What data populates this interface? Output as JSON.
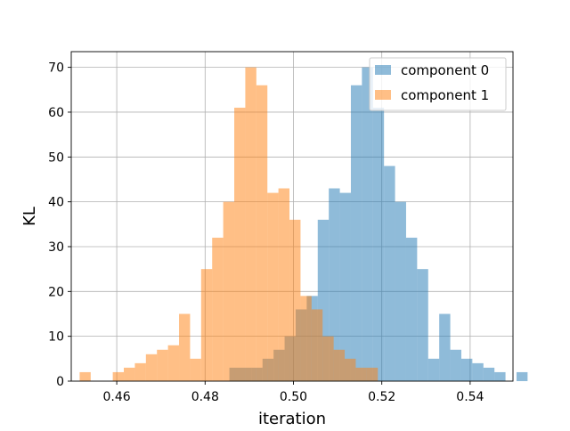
{
  "chart_data": {
    "type": "bar",
    "title": "",
    "xlabel": "iteration",
    "ylabel": "KL",
    "xlim": [
      0.4497,
      0.5497
    ],
    "ylim": [
      0,
      73.5
    ],
    "xticks": [
      0.46,
      0.48,
      0.5,
      0.52,
      0.54
    ],
    "xtick_labels": [
      "0.46",
      "0.48",
      "0.50",
      "0.52",
      "0.54"
    ],
    "yticks": [
      0,
      10,
      20,
      30,
      40,
      50,
      60,
      70
    ],
    "ytick_labels": [
      "0",
      "10",
      "20",
      "30",
      "40",
      "50",
      "60",
      "70"
    ],
    "grid": true,
    "legend_position": "top-right",
    "series": [
      {
        "name": "component 0",
        "color": "#1f77b4",
        "opacity": 0.5,
        "bin_start": 0.4855,
        "bin_width": 0.0025,
        "counts": [
          3,
          3,
          3,
          5,
          7,
          10,
          16,
          19,
          36,
          43,
          42,
          66,
          70,
          61,
          48,
          40,
          32,
          25,
          5,
          15,
          7,
          5,
          4,
          3,
          2,
          0,
          2
        ]
      },
      {
        "name": "component 1",
        "color": "#ff7f0e",
        "opacity": 0.5,
        "bin_start": 0.4516,
        "bin_width": 0.0025,
        "counts": [
          2,
          0,
          0,
          2,
          3,
          4,
          6,
          7,
          8,
          15,
          5,
          25,
          32,
          40,
          61,
          70,
          66,
          42,
          43,
          36,
          19,
          16,
          10,
          7,
          5,
          3,
          3
        ]
      }
    ]
  }
}
